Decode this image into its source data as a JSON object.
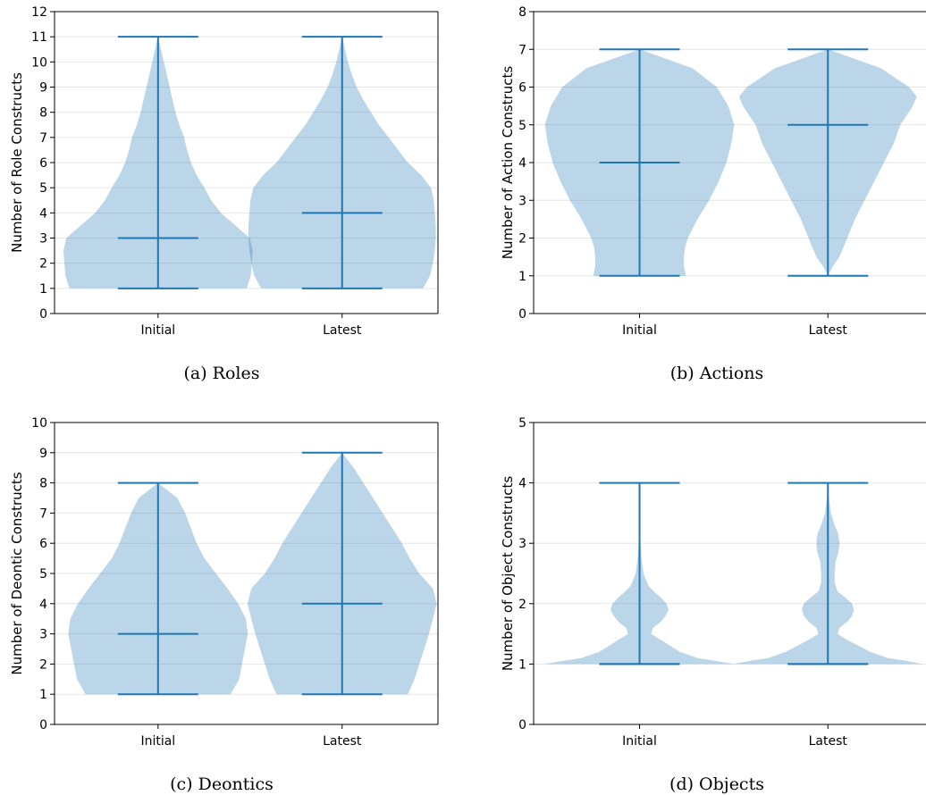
{
  "chart_data": [
    {
      "type": "violin",
      "caption": "(a) Roles",
      "ylabel": "Number of Role Constructs",
      "categories": [
        "Initial",
        "Latest"
      ],
      "ylim": [
        0,
        12
      ],
      "yticks": [
        0,
        1,
        2,
        3,
        4,
        5,
        6,
        7,
        8,
        9,
        10,
        11,
        12
      ],
      "grid": "horizontal",
      "color": "#1f77b4",
      "violins": [
        {
          "category": "Initial",
          "min": 1,
          "max": 11,
          "median": 3,
          "density": [
            [
              1,
              0.92
            ],
            [
              1.5,
              0.96
            ],
            [
              2,
              0.97
            ],
            [
              2.5,
              0.98
            ],
            [
              3,
              0.95
            ],
            [
              3.5,
              0.8
            ],
            [
              4,
              0.65
            ],
            [
              4.5,
              0.55
            ],
            [
              5,
              0.48
            ],
            [
              5.5,
              0.4
            ],
            [
              6,
              0.34
            ],
            [
              6.5,
              0.3
            ],
            [
              7,
              0.27
            ],
            [
              7.5,
              0.22
            ],
            [
              8,
              0.18
            ],
            [
              8.5,
              0.15
            ],
            [
              9,
              0.12
            ],
            [
              9.5,
              0.09
            ],
            [
              10,
              0.06
            ],
            [
              10.5,
              0.03
            ],
            [
              11,
              0.0
            ]
          ]
        },
        {
          "category": "Latest",
          "min": 1,
          "max": 11,
          "median": 4,
          "density": [
            [
              1,
              0.84
            ],
            [
              1.5,
              0.91
            ],
            [
              2,
              0.94
            ],
            [
              2.5,
              0.96
            ],
            [
              3,
              0.97
            ],
            [
              3.5,
              0.97
            ],
            [
              4,
              0.96
            ],
            [
              4.5,
              0.95
            ],
            [
              5,
              0.92
            ],
            [
              5.5,
              0.82
            ],
            [
              6,
              0.68
            ],
            [
              6.5,
              0.58
            ],
            [
              7,
              0.48
            ],
            [
              7.5,
              0.38
            ],
            [
              8,
              0.3
            ],
            [
              8.5,
              0.22
            ],
            [
              9,
              0.15
            ],
            [
              9.5,
              0.1
            ],
            [
              10,
              0.06
            ],
            [
              10.5,
              0.03
            ],
            [
              11,
              0.0
            ]
          ]
        }
      ]
    },
    {
      "type": "violin",
      "caption": "(b) Actions",
      "ylabel": "Number of Action Constructs",
      "categories": [
        "Initial",
        "Latest"
      ],
      "ylim": [
        0,
        8
      ],
      "yticks": [
        0,
        1,
        2,
        3,
        4,
        5,
        6,
        7,
        8
      ],
      "grid": "horizontal",
      "color": "#1f77b4",
      "violins": [
        {
          "category": "Initial",
          "min": 1,
          "max": 7,
          "median": 4,
          "density": [
            [
              1,
              0.48
            ],
            [
              1.25,
              0.46
            ],
            [
              1.5,
              0.46
            ],
            [
              1.75,
              0.47
            ],
            [
              2,
              0.5
            ],
            [
              2.5,
              0.6
            ],
            [
              3,
              0.72
            ],
            [
              3.5,
              0.82
            ],
            [
              4,
              0.9
            ],
            [
              4.5,
              0.95
            ],
            [
              5,
              0.98
            ],
            [
              5.5,
              0.92
            ],
            [
              6,
              0.8
            ],
            [
              6.5,
              0.55
            ],
            [
              7,
              0.0
            ]
          ]
        },
        {
          "category": "Latest",
          "min": 1,
          "max": 7,
          "median": 5,
          "density": [
            [
              1,
              0.0
            ],
            [
              1.25,
              0.05
            ],
            [
              1.5,
              0.12
            ],
            [
              2,
              0.2
            ],
            [
              2.5,
              0.28
            ],
            [
              3,
              0.38
            ],
            [
              3.5,
              0.48
            ],
            [
              4,
              0.58
            ],
            [
              4.5,
              0.68
            ],
            [
              5,
              0.75
            ],
            [
              5.5,
              0.88
            ],
            [
              5.75,
              0.92
            ],
            [
              6,
              0.84
            ],
            [
              6.5,
              0.55
            ],
            [
              7,
              0.0
            ]
          ]
        }
      ]
    },
    {
      "type": "violin",
      "caption": "(c) Deontics",
      "ylabel": "Number of Deontic Constructs",
      "categories": [
        "Initial",
        "Latest"
      ],
      "ylim": [
        0,
        10
      ],
      "yticks": [
        0,
        1,
        2,
        3,
        4,
        5,
        6,
        7,
        8,
        9,
        10
      ],
      "grid": "horizontal",
      "color": "#1f77b4",
      "violins": [
        {
          "category": "Initial",
          "min": 1,
          "max": 8,
          "median": 3,
          "density": [
            [
              1,
              0.75
            ],
            [
              1.5,
              0.84
            ],
            [
              2,
              0.87
            ],
            [
              2.5,
              0.9
            ],
            [
              3,
              0.93
            ],
            [
              3.5,
              0.91
            ],
            [
              4,
              0.83
            ],
            [
              4.5,
              0.72
            ],
            [
              5,
              0.6
            ],
            [
              5.5,
              0.48
            ],
            [
              6,
              0.4
            ],
            [
              6.5,
              0.34
            ],
            [
              7,
              0.28
            ],
            [
              7.5,
              0.2
            ],
            [
              8,
              0.0
            ]
          ]
        },
        {
          "category": "Latest",
          "min": 1,
          "max": 9,
          "median": 4,
          "density": [
            [
              1,
              0.68
            ],
            [
              1.5,
              0.75
            ],
            [
              2,
              0.8
            ],
            [
              2.5,
              0.85
            ],
            [
              3,
              0.9
            ],
            [
              3.5,
              0.94
            ],
            [
              4,
              0.98
            ],
            [
              4.5,
              0.94
            ],
            [
              5,
              0.8
            ],
            [
              5.5,
              0.7
            ],
            [
              6,
              0.62
            ],
            [
              6.5,
              0.52
            ],
            [
              7,
              0.42
            ],
            [
              7.5,
              0.32
            ],
            [
              8,
              0.22
            ],
            [
              8.5,
              0.12
            ],
            [
              9,
              0.0
            ]
          ]
        }
      ]
    },
    {
      "type": "violin",
      "caption": "(d) Objects",
      "ylabel": "Number of Object Constructs",
      "categories": [
        "Initial",
        "Latest"
      ],
      "ylim": [
        0,
        5
      ],
      "yticks": [
        0,
        1,
        2,
        3,
        4,
        5
      ],
      "grid": "horizontal",
      "color": "#1f77b4",
      "violins": [
        {
          "category": "Initial",
          "min": 1,
          "max": 4,
          "median": 1,
          "density": [
            [
              1,
              0.98
            ],
            [
              1.05,
              0.8
            ],
            [
              1.1,
              0.6
            ],
            [
              1.2,
              0.42
            ],
            [
              1.3,
              0.32
            ],
            [
              1.4,
              0.22
            ],
            [
              1.5,
              0.12
            ],
            [
              1.6,
              0.14
            ],
            [
              1.7,
              0.22
            ],
            [
              1.8,
              0.27
            ],
            [
              1.9,
              0.3
            ],
            [
              2,
              0.28
            ],
            [
              2.1,
              0.22
            ],
            [
              2.2,
              0.15
            ],
            [
              2.3,
              0.09
            ],
            [
              2.5,
              0.04
            ],
            [
              2.75,
              0.02
            ],
            [
              3,
              0.01
            ],
            [
              3.5,
              0.005
            ],
            [
              4,
              0.0
            ]
          ]
        },
        {
          "category": "Latest",
          "min": 1,
          "max": 4,
          "median": 1,
          "density": [
            [
              1,
              0.98
            ],
            [
              1.05,
              0.82
            ],
            [
              1.1,
              0.62
            ],
            [
              1.2,
              0.44
            ],
            [
              1.3,
              0.32
            ],
            [
              1.4,
              0.2
            ],
            [
              1.5,
              0.1
            ],
            [
              1.6,
              0.12
            ],
            [
              1.7,
              0.2
            ],
            [
              1.8,
              0.25
            ],
            [
              1.9,
              0.27
            ],
            [
              2,
              0.25
            ],
            [
              2.1,
              0.18
            ],
            [
              2.2,
              0.1
            ],
            [
              2.35,
              0.07
            ],
            [
              2.5,
              0.07
            ],
            [
              2.7,
              0.08
            ],
            [
              2.85,
              0.11
            ],
            [
              3,
              0.12
            ],
            [
              3.15,
              0.11
            ],
            [
              3.3,
              0.07
            ],
            [
              3.5,
              0.03
            ],
            [
              3.75,
              0.01
            ],
            [
              4,
              0.0
            ]
          ]
        }
      ]
    }
  ]
}
